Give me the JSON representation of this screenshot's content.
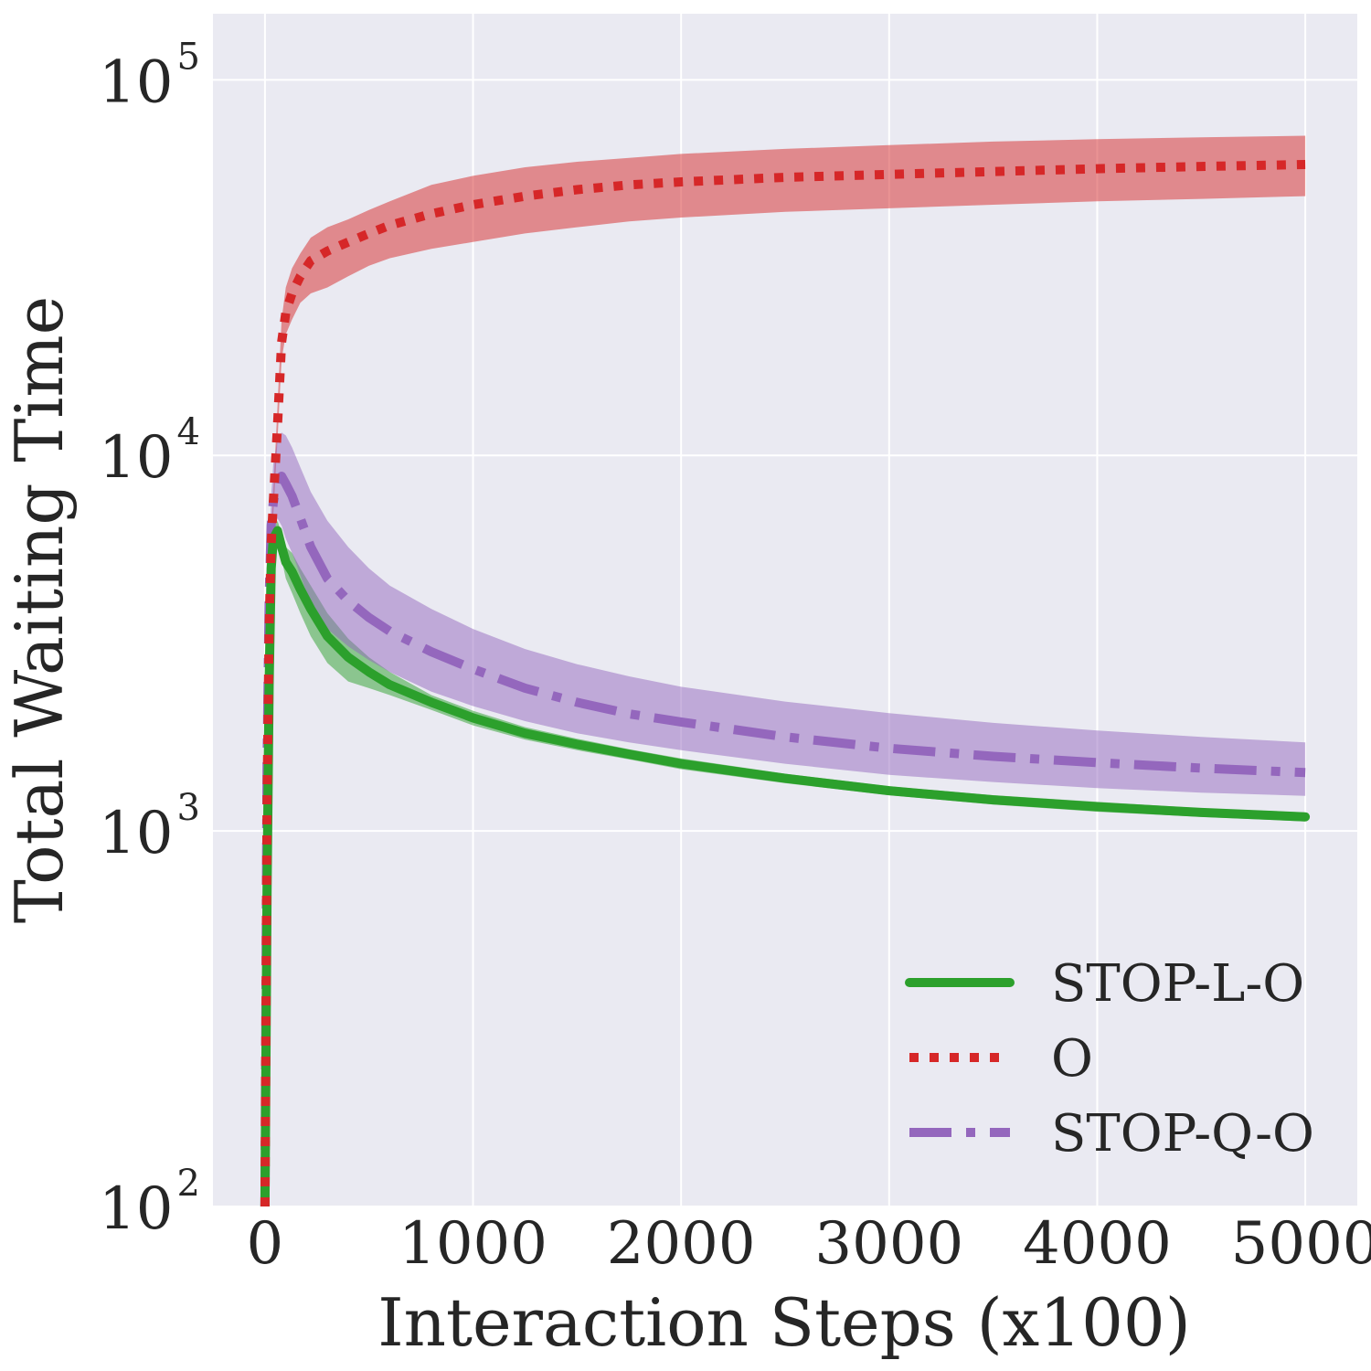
{
  "chart_data": {
    "type": "line",
    "title": "",
    "xlabel": "Interaction Steps (x100)",
    "ylabel": "Total Waiting Time",
    "xlim": [
      -250,
      5250
    ],
    "ylim": [
      100,
      150000
    ],
    "yscale": "log",
    "grid": true,
    "legend_position": "lower-right",
    "x_ticks": [
      {
        "value": 0,
        "label": "0"
      },
      {
        "value": 1000,
        "label": "1000"
      },
      {
        "value": 2000,
        "label": "2000"
      },
      {
        "value": 3000,
        "label": "3000"
      },
      {
        "value": 4000,
        "label": "4000"
      },
      {
        "value": 5000,
        "label": "5000"
      }
    ],
    "y_ticks": [
      {
        "value": 100,
        "base": "10",
        "exp": "2"
      },
      {
        "value": 1000,
        "base": "10",
        "exp": "3"
      },
      {
        "value": 10000,
        "base": "10",
        "exp": "4"
      },
      {
        "value": 100000,
        "base": "10",
        "exp": "5"
      }
    ],
    "x": [
      0,
      10,
      20,
      30,
      40,
      60,
      80,
      100,
      130,
      170,
      220,
      300,
      400,
      500,
      600,
      800,
      1000,
      1250,
      1500,
      1750,
      2000,
      2500,
      3000,
      3500,
      4000,
      4500,
      5000
    ],
    "series": [
      {
        "name": "STOP-L-O",
        "color": "#2ca02c",
        "style": "solid",
        "values": [
          100,
          700,
          2500,
          5000,
          6000,
          6300,
          5700,
          5200,
          4900,
          4400,
          3900,
          3300,
          2900,
          2650,
          2450,
          2200,
          2000,
          1820,
          1700,
          1600,
          1510,
          1380,
          1280,
          1210,
          1160,
          1120,
          1090
        ],
        "lower": [
          100,
          650,
          2300,
          4700,
          5700,
          5900,
          5300,
          4700,
          4300,
          3800,
          3300,
          2800,
          2500,
          2400,
          2300,
          2100,
          1910,
          1750,
          1640,
          1550,
          1460,
          1340,
          1245,
          1175,
          1125,
          1090,
          1060
        ],
        "upper": [
          100,
          750,
          2700,
          5300,
          6300,
          6700,
          6200,
          5700,
          5500,
          5000,
          4500,
          3800,
          3250,
          2900,
          2650,
          2300,
          2090,
          1890,
          1760,
          1650,
          1560,
          1420,
          1315,
          1245,
          1195,
          1150,
          1120
        ]
      },
      {
        "name": "O",
        "color": "#d62728",
        "style": "dotted",
        "values": [
          100,
          1200,
          3500,
          5800,
          7500,
          12000,
          20000,
          24000,
          27000,
          30000,
          33000,
          35000,
          37000,
          39000,
          41000,
          44000,
          46500,
          49000,
          51000,
          52500,
          53500,
          55000,
          56000,
          57000,
          58000,
          58800,
          59500
        ],
        "lower": [
          100,
          1100,
          3200,
          5300,
          7000,
          11000,
          18000,
          21000,
          23000,
          25500,
          27000,
          28000,
          30000,
          32000,
          33500,
          35500,
          37000,
          39000,
          40500,
          42000,
          43000,
          44500,
          45500,
          46500,
          47500,
          48200,
          49000
        ],
        "upper": [
          100,
          1300,
          3800,
          6300,
          8000,
          13500,
          23000,
          28000,
          31500,
          34500,
          38000,
          40500,
          42500,
          45000,
          47500,
          52500,
          55500,
          58500,
          60500,
          62000,
          63500,
          65500,
          67000,
          68500,
          69500,
          70300,
          71000
        ]
      },
      {
        "name": "STOP-Q-O",
        "color": "#9467bd",
        "style": "dashdot",
        "values": [
          100,
          1500,
          4200,
          6500,
          7500,
          8600,
          8800,
          8400,
          7800,
          6800,
          5700,
          4700,
          4100,
          3700,
          3400,
          3000,
          2700,
          2400,
          2200,
          2050,
          1950,
          1780,
          1660,
          1580,
          1520,
          1470,
          1430
        ],
        "lower": [
          100,
          1300,
          3600,
          5600,
          6300,
          6800,
          6500,
          6000,
          5500,
          4800,
          4000,
          3450,
          3100,
          2850,
          2650,
          2350,
          2150,
          1960,
          1820,
          1720,
          1640,
          1510,
          1410,
          1350,
          1300,
          1265,
          1240
        ],
        "upper": [
          100,
          1700,
          5000,
          7800,
          9500,
          11000,
          11500,
          11300,
          10500,
          9300,
          8000,
          6700,
          5700,
          5000,
          4500,
          3900,
          3450,
          3050,
          2780,
          2580,
          2420,
          2210,
          2060,
          1940,
          1850,
          1780,
          1720
        ]
      }
    ]
  }
}
